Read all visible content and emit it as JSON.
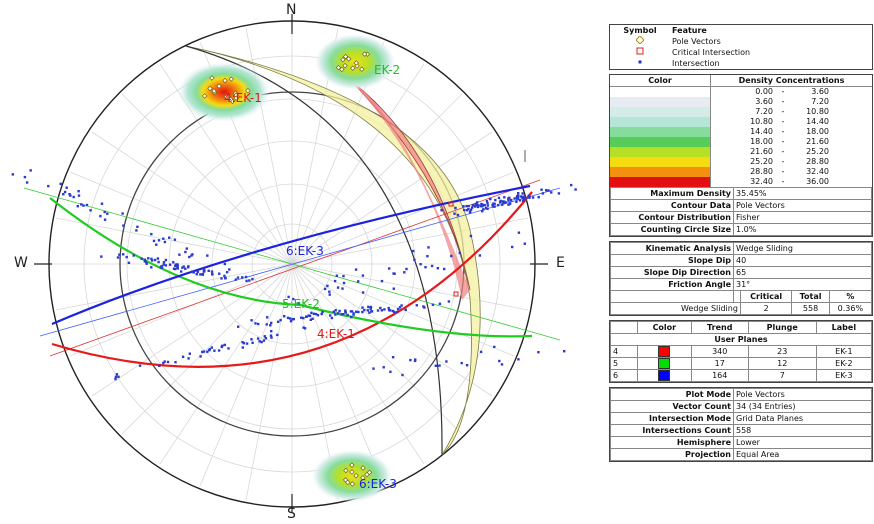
{
  "compass": {
    "n": "N",
    "s": "S",
    "e": "E",
    "w": "W"
  },
  "plane_labels": {
    "ek1_pole": "4:EK-1",
    "ek2_pole": "EK-2",
    "ek3_pole": "6:EK-3",
    "ek1_gc": "4:EK-1",
    "ek2_gc": "5:EK-2",
    "ek3_gc": "6:EK-3"
  },
  "legend": {
    "symbol_header": "Symbol",
    "feature_header": "Feature",
    "symbols": [
      {
        "label": "Pole Vectors",
        "icon": "diamond",
        "color": "#b8860b"
      },
      {
        "label": "Critical Intersection",
        "icon": "square",
        "color": "#e02020"
      },
      {
        "label": "Intersection",
        "icon": "dot",
        "color": "#2233cc"
      }
    ],
    "color_header": "Color",
    "density_header": "Density Concentrations",
    "density_bins": [
      {
        "from": "0.00",
        "to": "3.60",
        "color": "#ffffff"
      },
      {
        "from": "3.60",
        "to": "7.20",
        "color": "#e8ecf2"
      },
      {
        "from": "7.20",
        "to": "10.80",
        "color": "#d3ece8"
      },
      {
        "from": "10.80",
        "to": "14.40",
        "color": "#b5e6d6"
      },
      {
        "from": "14.40",
        "to": "18.00",
        "color": "#86dc9c"
      },
      {
        "from": "18.00",
        "to": "21.60",
        "color": "#58cc58"
      },
      {
        "from": "21.60",
        "to": "25.20",
        "color": "#b6e026"
      },
      {
        "from": "25.20",
        "to": "28.80",
        "color": "#f4dc10"
      },
      {
        "from": "28.80",
        "to": "32.40",
        "color": "#f49010"
      },
      {
        "from": "32.40",
        "to": "36.00",
        "color": "#e21010"
      }
    ],
    "density_info": [
      {
        "k": "Maximum Density",
        "v": "35.45%"
      },
      {
        "k": "Contour Data",
        "v": "Pole Vectors"
      },
      {
        "k": "Contour Distribution",
        "v": "Fisher"
      },
      {
        "k": "Counting Circle Size",
        "v": "1.0%"
      }
    ],
    "kinematic": [
      {
        "k": "Kinematic Analysis",
        "v": "Wedge Sliding"
      },
      {
        "k": "Slope Dip",
        "v": "40"
      },
      {
        "k": "Slope Dip Direction",
        "v": "65"
      },
      {
        "k": "Friction Angle",
        "v": "31°"
      }
    ],
    "crit_headers": {
      "critical": "Critical",
      "total": "Total",
      "pct": "%"
    },
    "crit_row": {
      "label": "Wedge Sliding",
      "critical": "2",
      "total": "558",
      "pct": "0.36%"
    },
    "planes_headers": {
      "color": "Color",
      "trend": "Trend",
      "plunge": "Plunge",
      "label": "Label"
    },
    "user_planes_title": "User Planes",
    "planes": [
      {
        "id": "4",
        "color": "#ff0000",
        "trend": "340",
        "plunge": "23",
        "label": "EK-1"
      },
      {
        "id": "5",
        "color": "#00dd00",
        "trend": "17",
        "plunge": "12",
        "label": "EK-2"
      },
      {
        "id": "6",
        "color": "#0000ff",
        "trend": "164",
        "plunge": "7",
        "label": "EK-3"
      }
    ],
    "plot_info": [
      {
        "k": "Plot Mode",
        "v": "Pole Vectors"
      },
      {
        "k": "Vector Count",
        "v": "34 (34 Entries)"
      },
      {
        "k": "Intersection Mode",
        "v": "Grid Data Planes"
      },
      {
        "k": "Intersections Count",
        "v": "558"
      },
      {
        "k": "Hemisphere",
        "v": "Lower"
      },
      {
        "k": "Projection",
        "v": "Equal Area"
      }
    ]
  }
}
